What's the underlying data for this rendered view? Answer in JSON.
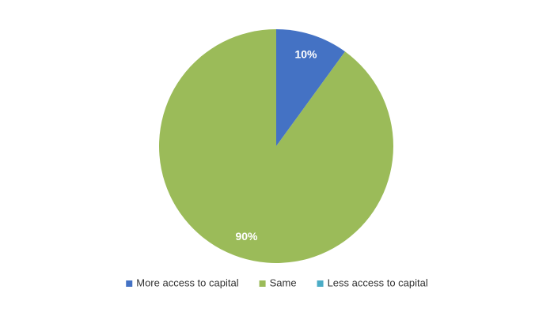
{
  "chart_data": {
    "type": "pie",
    "categories": [
      "More access to capital",
      "Same",
      "Less access to capital"
    ],
    "values": [
      10,
      90,
      0
    ],
    "value_labels": [
      "10%",
      "90%",
      null
    ],
    "colors": [
      "#4472c4",
      "#9bbb59",
      "#4bacc6"
    ],
    "legend": "bottom"
  }
}
